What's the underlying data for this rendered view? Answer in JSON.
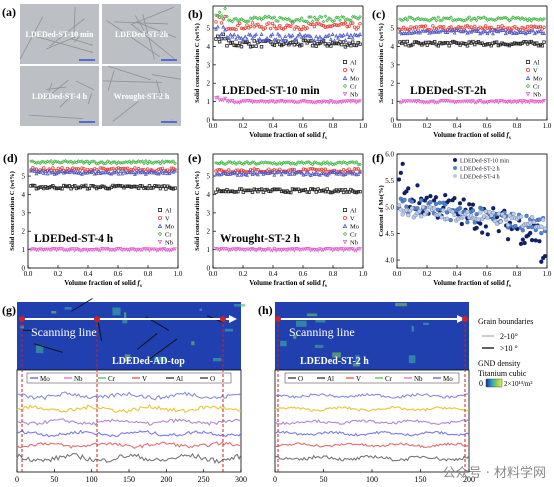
{
  "colors": {
    "Al": "#222222",
    "V": "#e8443a",
    "Mo": "#4a56c8",
    "Cr": "#44b84a",
    "Nb": "#e060d0",
    "series_10min": "#0d1f6e",
    "series_2h": "#4f86d6",
    "series_4h": "#b9cdf2",
    "map_bg": "#2040b0",
    "grain": "#101418",
    "guide": "#d22020"
  },
  "panel_a": {
    "label": "(a)",
    "tiles": [
      "LDEDed-ST-10 min",
      "LDEDed-ST-2h",
      "LDEDed-ST-4 h",
      "Wrought-ST-2 h"
    ]
  },
  "chart_data": [
    {
      "panel": "(b)",
      "type": "scatter",
      "title": "LDEDed-ST-10 min",
      "xlabel": "Volume fraction of solid f_s",
      "ylabel": "Solid concentration C (wt%)",
      "xlim": [
        0,
        1
      ],
      "ylim": [
        0,
        6.2
      ],
      "xticks": [
        "0.0",
        "0.2",
        "0.4",
        "0.6",
        "0.8",
        "1.0"
      ],
      "yticks": [
        "0",
        "1",
        "2",
        "3",
        "4",
        "5"
      ],
      "legend_position": "right",
      "series": [
        {
          "name": "Al",
          "marker": "square",
          "level": 4.15,
          "spread": 0.18
        },
        {
          "name": "V",
          "marker": "circle",
          "level": 5.1,
          "spread": 0.18
        },
        {
          "name": "Mo",
          "marker": "triangle",
          "level": 4.5,
          "spread": 0.2
        },
        {
          "name": "Cr",
          "marker": "diamond",
          "level": 5.5,
          "spread": 0.15
        },
        {
          "name": "Nb",
          "marker": "triangle-down",
          "level": 1.0,
          "spread": 0.06
        }
      ]
    },
    {
      "panel": "(c)",
      "type": "scatter",
      "title": "LDEDed-ST-2h",
      "xlabel": "Volume fraction of solid f_s",
      "ylabel": "Solid concentration C (wt%)",
      "xlim": [
        0,
        1
      ],
      "ylim": [
        0,
        6.2
      ],
      "xticks": [
        "0.0",
        "0.2",
        "0.4",
        "0.6",
        "0.8",
        "1.0"
      ],
      "yticks": [
        "0",
        "1",
        "2",
        "3",
        "4",
        "5"
      ],
      "legend_position": "right",
      "series": [
        {
          "name": "Al",
          "marker": "square",
          "level": 4.15,
          "spread": 0.12
        },
        {
          "name": "V",
          "marker": "circle",
          "level": 5.0,
          "spread": 0.12
        },
        {
          "name": "Mo",
          "marker": "triangle",
          "level": 4.8,
          "spread": 0.1
        },
        {
          "name": "Cr",
          "marker": "diamond",
          "level": 5.5,
          "spread": 0.1
        },
        {
          "name": "Nb",
          "marker": "triangle-down",
          "level": 1.0,
          "spread": 0.05
        }
      ]
    },
    {
      "panel": "(d)",
      "type": "scatter",
      "title": "LDEDed-ST-4 h",
      "xlabel": "Volume fraction of solid f_s",
      "ylabel": "Solid concentration C (wt%)",
      "xlim": [
        0,
        1
      ],
      "ylim": [
        0,
        6.2
      ],
      "xticks": [
        "0.0",
        "0.2",
        "0.4",
        "0.6",
        "0.8",
        "1.0"
      ],
      "yticks": [
        "0",
        "1",
        "2",
        "3",
        "4",
        "5"
      ],
      "legend_position": "right",
      "series": [
        {
          "name": "Al",
          "marker": "square",
          "level": 4.4,
          "spread": 0.1
        },
        {
          "name": "V",
          "marker": "circle",
          "level": 5.35,
          "spread": 0.1
        },
        {
          "name": "Mo",
          "marker": "triangle",
          "level": 5.2,
          "spread": 0.1
        },
        {
          "name": "Cr",
          "marker": "diamond",
          "level": 5.75,
          "spread": 0.08
        },
        {
          "name": "Nb",
          "marker": "triangle-down",
          "level": 1.0,
          "spread": 0.05
        }
      ]
    },
    {
      "panel": "(e)",
      "type": "scatter",
      "title": "Wrought-ST-2 h",
      "xlabel": "Volume fraction of solid f_s",
      "ylabel": "Solid concentration C (wt%)",
      "xlim": [
        0,
        1
      ],
      "ylim": [
        0,
        6.2
      ],
      "xticks": [
        "0.0",
        "0.2",
        "0.4",
        "0.6",
        "0.8",
        "1.0"
      ],
      "yticks": [
        "0",
        "1",
        "2",
        "3",
        "4",
        "5"
      ],
      "legend_position": "right",
      "series": [
        {
          "name": "Al",
          "marker": "square",
          "level": 4.2,
          "spread": 0.1
        },
        {
          "name": "V",
          "marker": "circle",
          "level": 5.3,
          "spread": 0.1
        },
        {
          "name": "Mo",
          "marker": "triangle",
          "level": 5.15,
          "spread": 0.1
        },
        {
          "name": "Cr",
          "marker": "diamond",
          "level": 5.7,
          "spread": 0.08
        },
        {
          "name": "Nb",
          "marker": "triangle-down",
          "level": 1.0,
          "spread": 0.05
        }
      ]
    },
    {
      "panel": "(f)",
      "type": "scatter",
      "title": "",
      "xlabel": "Volume fraction of solid f_s",
      "ylabel": "Content of Mo(%)",
      "xlim": [
        0,
        1
      ],
      "ylim": [
        3.85,
        6.0
      ],
      "xticks": [
        "0.0",
        "0.2",
        "0.4",
        "0.6",
        "0.8",
        "1.0"
      ],
      "yticks": [
        "4.0",
        "4.5",
        "5.0",
        "5.5",
        "6.0"
      ],
      "legend_position": "top-right",
      "series": [
        {
          "name": "LDEDed-ST-10 min",
          "start": 5.25,
          "end": 4.45,
          "spread": 0.28
        },
        {
          "name": "LDEDed-ST-2 h",
          "start": 5.05,
          "end": 4.65,
          "spread": 0.16
        },
        {
          "name": "LDEDed-ST-4 h",
          "start": 4.95,
          "end": 4.7,
          "spread": 0.12
        }
      ]
    },
    {
      "panel": "(g)",
      "type": "line",
      "title": "LDEDed-AD-top",
      "xlim": [
        0,
        300
      ],
      "xticks": [
        "0",
        "50",
        "100",
        "150",
        "200",
        "250",
        "300"
      ],
      "series": [
        {
          "name": "Mo",
          "baseline": 0.88,
          "amplitude": 0.05
        },
        {
          "name": "Nb",
          "baseline": 0.72,
          "amplitude": 0.05
        },
        {
          "name": "Cr",
          "baseline": 0.56,
          "amplitude": 0.04
        },
        {
          "name": "V",
          "baseline": 0.42,
          "amplitude": 0.04
        },
        {
          "name": "Al",
          "baseline": 0.28,
          "amplitude": 0.04
        },
        {
          "name": "O",
          "baseline": 0.12,
          "amplitude": 0.06
        }
      ]
    },
    {
      "panel": "(h)",
      "type": "line",
      "title": "LDEDed-ST-2 h",
      "xlim": [
        0,
        200
      ],
      "xticks": [
        "0",
        "50",
        "100",
        "150",
        "200"
      ],
      "series": [
        {
          "name": "O",
          "baseline": 0.12,
          "amplitude": 0.04
        },
        {
          "name": "Al",
          "baseline": 0.28,
          "amplitude": 0.03
        },
        {
          "name": "V",
          "baseline": 0.42,
          "amplitude": 0.03
        },
        {
          "name": "Cr",
          "baseline": 0.56,
          "amplitude": 0.03
        },
        {
          "name": "Nb",
          "baseline": 0.72,
          "amplitude": 0.03
        },
        {
          "name": "Mo",
          "baseline": 0.88,
          "amplitude": 0.03
        }
      ]
    }
  ],
  "maps": {
    "g_scanning": "Scanning line",
    "h_scanning": "Scanning line"
  },
  "legend_side": {
    "grain_title": "Grain boundaries",
    "grain_low": "2-10°",
    "grain_high": ">10 °",
    "gnd_title": "GND density",
    "cubic_title": "Titanium cubic",
    "scale_min": "0",
    "scale_max": "2×10¹⁴/m²"
  },
  "watermark": "公众号 · 材料学网"
}
